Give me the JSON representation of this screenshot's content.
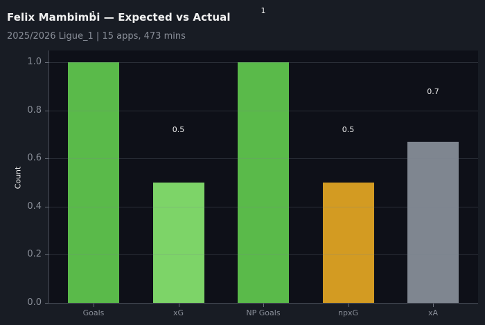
{
  "header": {
    "title": "Felix Mambimbi — Expected vs Actual",
    "subtitle": "2025/2026 Ligue_1 | 15 apps, 473 mins"
  },
  "chart_data": {
    "type": "bar",
    "title": "Felix Mambimbi — Expected vs Actual",
    "subtitle": "2025/2026 Ligue_1 | 15 apps, 473 mins",
    "categories": [
      "Goals",
      "xG",
      "NP Goals",
      "npxG",
      "xA"
    ],
    "values": [
      1.0,
      0.5,
      1.0,
      0.5,
      0.67
    ],
    "value_labels": [
      "1",
      "0.5",
      "1",
      "0.5",
      "0.7"
    ],
    "colors": [
      "#5aba4a",
      "#7dd468",
      "#5aba4a",
      "#d39b22",
      "#7f8690"
    ],
    "xlabel": "",
    "ylabel": "Count",
    "ylim": [
      0,
      1.05
    ],
    "yticks": [
      0.0,
      0.2,
      0.4,
      0.6,
      0.8,
      1.0
    ],
    "ytick_labels": [
      "0.0",
      "0.2",
      "0.4",
      "0.6",
      "0.8",
      "1.0"
    ],
    "grid": true,
    "legend": null
  }
}
